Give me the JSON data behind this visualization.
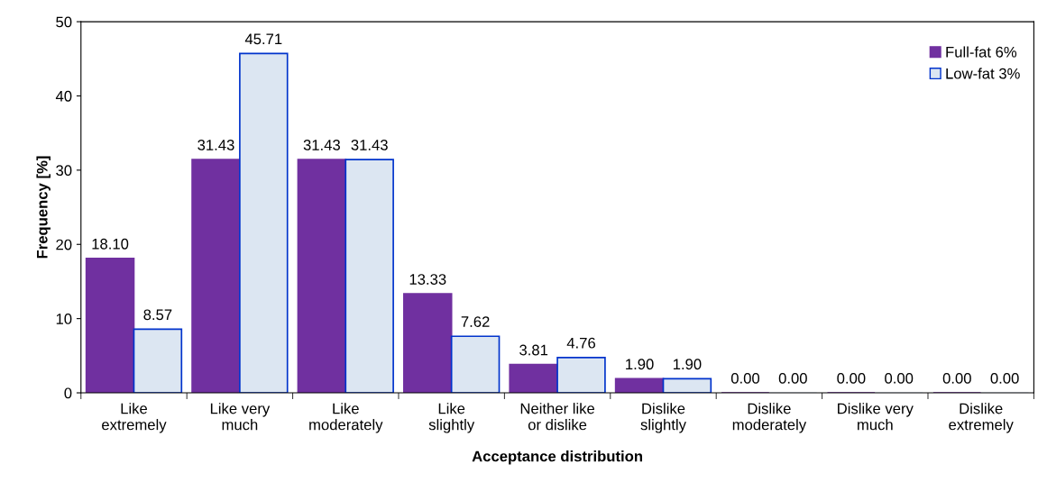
{
  "chart_data": {
    "type": "bar",
    "xlabel": "Acceptance distribution",
    "ylabel": "Frequency [%]",
    "categories": [
      "Like\nextremely",
      "Like very\nmuch",
      "Like\nmoderately",
      "Like\nslightly",
      "Neither like\nor dislike",
      "Dislike\nslightly",
      "Dislike\nmoderately",
      "Dislike very\nmuch",
      "Dislike\nextremely"
    ],
    "series": [
      {
        "name": "Full-fat 6%",
        "color": "#7030a0",
        "values": [
          18.1,
          31.43,
          31.43,
          13.33,
          3.81,
          1.9,
          0.0,
          0.0,
          0.0
        ],
        "value_labels": [
          "18.10",
          "31.43",
          "31.43",
          "13.33",
          "3.81",
          "1.90",
          "0.00",
          "0.00",
          "0.00"
        ]
      },
      {
        "name": "Low-fat 3%",
        "color": "#dce6f2",
        "values": [
          8.57,
          45.71,
          31.43,
          7.62,
          4.76,
          1.9,
          0.0,
          0.0,
          0.0
        ],
        "value_labels": [
          "8.57",
          "45.71",
          "31.43",
          "7.62",
          "4.76",
          "1.90",
          "0.00",
          "0.00",
          "0.00"
        ]
      }
    ],
    "ylim": [
      0,
      50
    ],
    "yticks": [
      0,
      10,
      20,
      30,
      40,
      50
    ],
    "grid": false,
    "legend": "top right"
  }
}
